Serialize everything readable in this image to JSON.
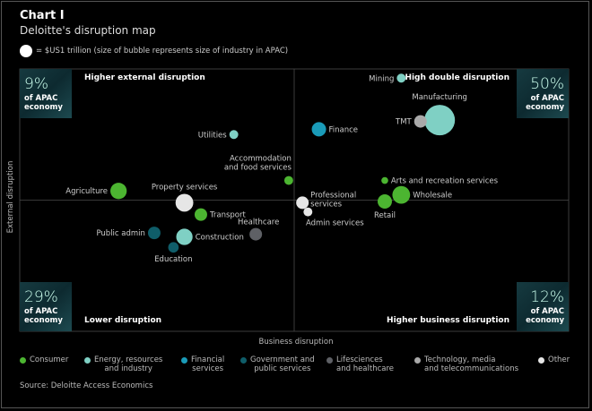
{
  "header": {
    "title": "Chart I",
    "subtitle": "Deloitte's disruption map",
    "size_key": "= $US1 trillion (size of bubble represents size of industry in APAC)"
  },
  "chart_data": {
    "type": "scatter",
    "variant": "bubble quadrant map",
    "xlabel": "Business disruption",
    "ylabel": "External disruption",
    "axis_scale": "relative (no numeric ticks printed); 0 = quadrant divider",
    "xlim": [
      -10,
      10
    ],
    "ylim": [
      -10,
      10
    ],
    "grid": false,
    "size_unit": "$US trillion",
    "quadrants": [
      {
        "label": "Higher external disruption",
        "share": "9%",
        "share_label": "of APAC economy",
        "position": "top-left"
      },
      {
        "label": "High double disruption",
        "share": "50%",
        "share_label": "of APAC economy",
        "position": "top-right"
      },
      {
        "label": "Lower disruption",
        "share": "29%",
        "share_label": "of APAC economy",
        "position": "bottom-left"
      },
      {
        "label": "Higher business disruption",
        "share": "12%",
        "share_label": "of APAC economy",
        "position": "bottom-right"
      }
    ],
    "categories": [
      {
        "name": "Consumer",
        "color": "#4cb531"
      },
      {
        "name": "Energy, resources and industry",
        "color": "#7fd0c4"
      },
      {
        "name": "Financial services",
        "color": "#1a9bb8"
      },
      {
        "name": "Government and public services",
        "color": "#0f5d69"
      },
      {
        "name": "Lifesciences and healthcare",
        "color": "#5e6065"
      },
      {
        "name": "Technology, media and telecommunications",
        "color": "#a9a9a9"
      },
      {
        "name": "Other",
        "color": "#e6e6e6"
      }
    ],
    "points": [
      {
        "label": "Mining",
        "category": 1,
        "x": 3.9,
        "y": 9.3,
        "size": 0.5
      },
      {
        "label": "Manufacturing",
        "category": 1,
        "x": 5.3,
        "y": 6.1,
        "size": 5.9
      },
      {
        "label": "TMT",
        "category": 5,
        "x": 4.6,
        "y": 6.0,
        "size": 1.0
      },
      {
        "label": "Finance",
        "category": 2,
        "x": 0.9,
        "y": 5.4,
        "size": 1.3
      },
      {
        "label": "Utilities",
        "category": 1,
        "x": -2.2,
        "y": 5.0,
        "size": 0.5
      },
      {
        "label": "Accommodation and food services",
        "category": 0,
        "x": -0.2,
        "y": 1.5,
        "size": 0.5
      },
      {
        "label": "Agriculture",
        "category": 0,
        "x": -6.4,
        "y": 0.7,
        "size": 1.7
      },
      {
        "label": "Property services",
        "category": 6,
        "x": -4.0,
        "y": -0.2,
        "size": 2.0
      },
      {
        "label": "Transport",
        "category": 0,
        "x": -3.4,
        "y": -1.1,
        "size": 1.0
      },
      {
        "label": "Public admin",
        "category": 3,
        "x": -5.1,
        "y": -2.5,
        "size": 1.0
      },
      {
        "label": "Construction",
        "category": 1,
        "x": -4.0,
        "y": -2.8,
        "size": 1.7
      },
      {
        "label": "Education",
        "category": 3,
        "x": -4.4,
        "y": -3.6,
        "size": 0.7
      },
      {
        "label": "Healthcare",
        "category": 4,
        "x": -1.4,
        "y": -2.6,
        "size": 1.0
      },
      {
        "label": "Professional services",
        "category": 6,
        "x": 0.3,
        "y": -0.2,
        "size": 1.0
      },
      {
        "label": "Admin services",
        "category": 6,
        "x": 0.5,
        "y": -0.9,
        "size": 0.5
      },
      {
        "label": "Arts and recreation services",
        "category": 0,
        "x": 3.3,
        "y": 1.5,
        "size": 0.3
      },
      {
        "label": "Wholesale",
        "category": 0,
        "x": 3.9,
        "y": 0.4,
        "size": 2.0
      },
      {
        "label": "Retail",
        "category": 0,
        "x": 3.3,
        "y": -0.1,
        "size": 1.3
      }
    ]
  },
  "legend": [
    {
      "line1": "Consumer",
      "line2": ""
    },
    {
      "line1": "Energy, resources",
      "line2": "and industry"
    },
    {
      "line1": "Financial",
      "line2": "services"
    },
    {
      "line1": "Government and",
      "line2": "public services"
    },
    {
      "line1": "Lifesciences",
      "line2": "and healthcare"
    },
    {
      "line1": "Technology, media",
      "line2": "and telecommunications"
    },
    {
      "line1": "Other",
      "line2": ""
    }
  ],
  "source": "Source: Deloitte Access Economics"
}
